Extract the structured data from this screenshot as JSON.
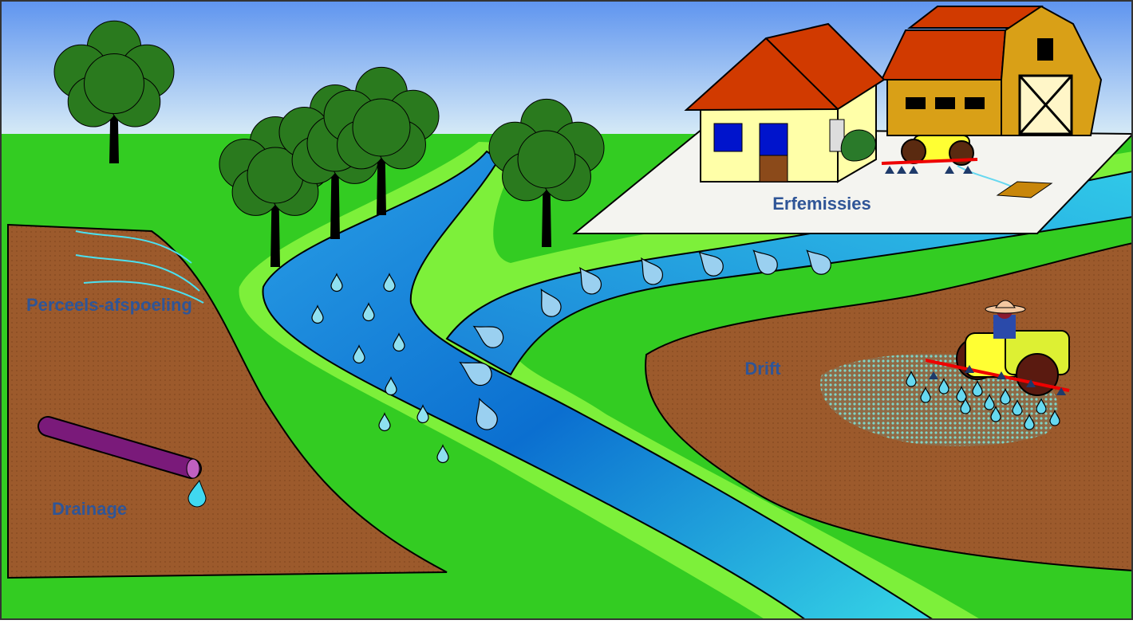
{
  "labels": [
    "Erfemissies",
    "Perceels-afspoeling",
    "Drift",
    "Drainage"
  ]
}
